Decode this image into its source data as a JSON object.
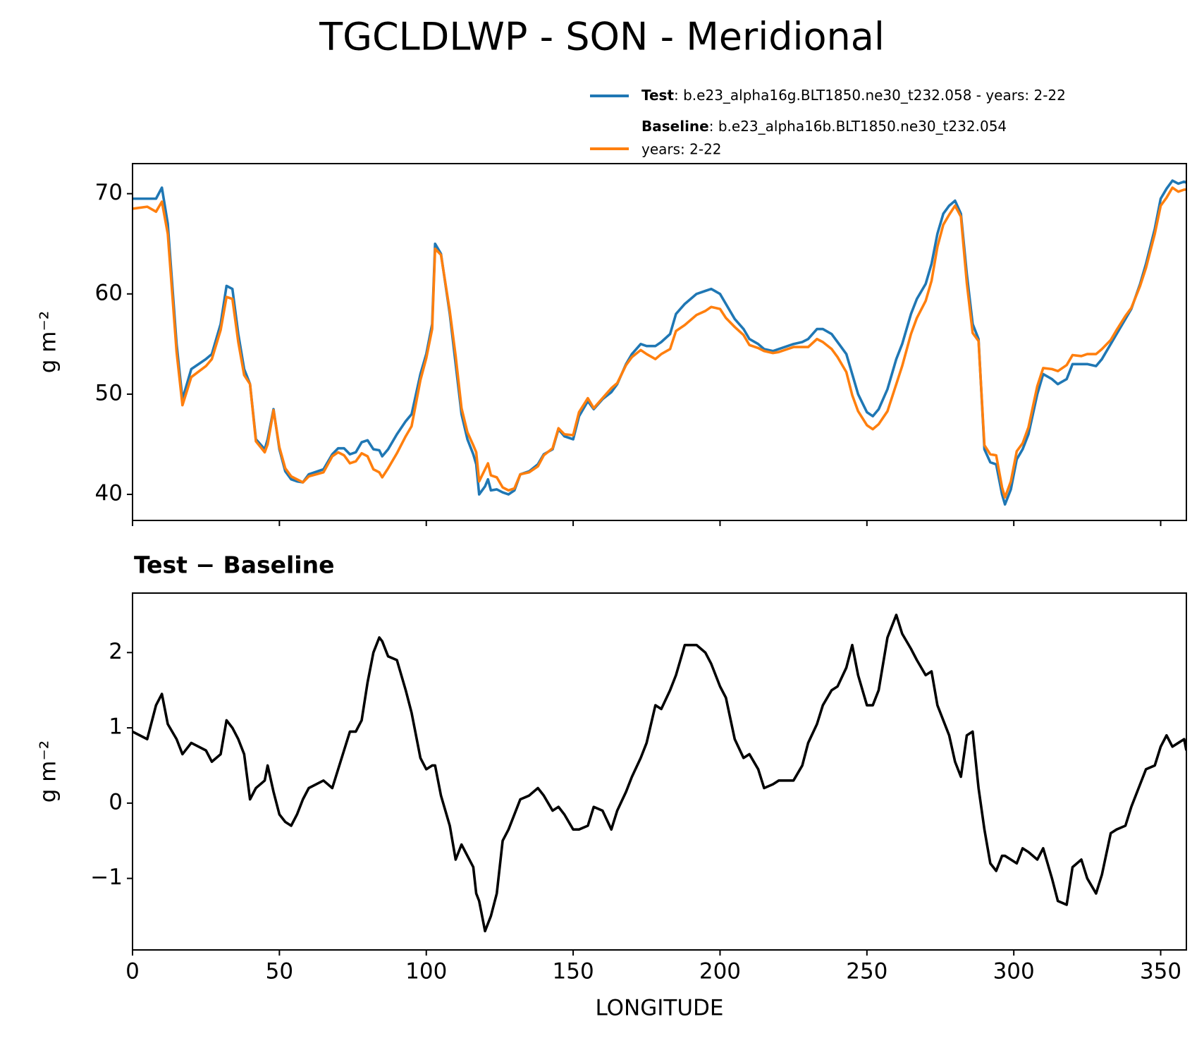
{
  "chart_data": [
    {
      "type": "line",
      "title": "TGCLDLWP - SON - Meridional",
      "ylabel": "g m⁻²",
      "xlim": [
        0,
        358.75
      ],
      "xticks": [
        0,
        50,
        100,
        150,
        200,
        250,
        300,
        350
      ],
      "ylim": [
        37.4,
        73.0
      ],
      "yticks": [
        40,
        50,
        60,
        70
      ],
      "x": [
        0,
        5,
        8,
        10,
        12,
        15,
        17,
        20,
        25,
        27,
        30,
        32,
        34,
        36,
        38,
        40,
        42,
        45,
        46,
        48,
        50,
        52,
        54,
        56,
        58,
        60,
        65,
        68,
        70,
        72,
        74,
        76,
        78,
        80,
        82,
        84,
        85,
        87,
        90,
        93,
        95,
        98,
        100,
        102,
        103,
        105,
        108,
        110,
        112,
        114,
        116,
        117,
        118,
        120,
        121,
        122,
        124,
        126,
        128,
        130,
        132,
        135,
        138,
        140,
        143,
        145,
        147,
        150,
        152,
        155,
        157,
        160,
        163,
        165,
        168,
        170,
        173,
        175,
        178,
        180,
        183,
        185,
        188,
        190,
        192,
        195,
        197,
        200,
        202,
        205,
        208,
        210,
        213,
        215,
        218,
        220,
        223,
        225,
        228,
        230,
        233,
        235,
        238,
        240,
        243,
        245,
        247,
        250,
        252,
        254,
        257,
        260,
        262,
        265,
        267,
        270,
        272,
        274,
        276,
        278,
        280,
        282,
        284,
        286,
        288,
        290,
        292,
        294,
        296,
        297,
        299,
        301,
        303,
        305,
        308,
        310,
        313,
        315,
        318,
        320,
        323,
        325,
        328,
        330,
        333,
        335,
        338,
        340,
        343,
        345,
        348,
        350,
        352,
        354,
        356,
        358,
        358.75
      ],
      "series": [
        {
          "name": "Test",
          "description": [
            ": b.e23_alpha16g.BLT1850.ne30_t232.058 - years: 2-22"
          ],
          "color": "#1f77b4",
          "values": [
            69.5,
            69.5,
            69.5,
            70.6,
            67,
            55,
            49.5,
            52.5,
            53.5,
            54,
            57,
            60.8,
            60.5,
            56,
            52.5,
            51,
            45.5,
            44.5,
            45.5,
            48.5,
            44.5,
            42.3,
            41.5,
            41.3,
            41.2,
            42,
            42.5,
            44,
            44.6,
            44.6,
            44,
            44.2,
            45.2,
            45.4,
            44.5,
            44.4,
            43.8,
            44.5,
            46,
            47.3,
            48,
            52,
            54,
            57,
            65,
            64,
            58,
            53,
            48,
            45.5,
            44,
            43,
            40,
            40.8,
            41.5,
            40.4,
            40.5,
            40.2,
            40,
            40.4,
            42,
            42.3,
            43,
            44,
            44.5,
            46.5,
            45.8,
            45.5,
            47.8,
            49.3,
            48.5,
            49.5,
            50.2,
            51,
            53,
            54,
            55,
            54.8,
            54.8,
            55.2,
            56,
            58,
            59,
            59.5,
            60,
            60.3,
            60.5,
            60,
            59,
            57.5,
            56.5,
            55.5,
            55,
            54.5,
            54.3,
            54.5,
            54.8,
            55,
            55.2,
            55.5,
            56.5,
            56.5,
            56,
            55.2,
            54,
            52,
            50,
            48.2,
            47.8,
            48.5,
            50.5,
            53.5,
            55,
            58,
            59.5,
            61,
            63,
            66,
            68,
            68.8,
            69.3,
            68,
            62,
            57,
            55.5,
            44.5,
            43.2,
            43,
            40,
            39,
            40.5,
            43.5,
            44.5,
            46,
            50,
            52,
            51.5,
            51,
            51.5,
            53,
            53,
            53,
            52.8,
            53.5,
            55,
            56,
            57.5,
            58.5,
            61,
            63,
            66.5,
            69.5,
            70.5,
            71.3,
            71,
            71.2,
            71.1
          ]
        },
        {
          "name": "Baseline",
          "description": [
            ": b.e23_alpha16b.BLT1850.ne30_t232.054",
            "years: 2-22"
          ],
          "color": "#ff7f0e",
          "values": [
            68.5,
            68.7,
            68.2,
            69.2,
            66.0,
            54.2,
            48.9,
            51.7,
            52.8,
            53.5,
            56.4,
            59.7,
            59.5,
            55.2,
            51.9,
            51.0,
            45.3,
            44.2,
            45.0,
            48.4,
            44.7,
            42.6,
            41.8,
            41.5,
            41.2,
            41.8,
            42.2,
            43.8,
            44.2,
            43.9,
            43.1,
            43.3,
            44.1,
            43.8,
            42.5,
            42.2,
            41.7,
            42.6,
            44.1,
            45.8,
            46.8,
            51.4,
            53.6,
            56.5,
            64.5,
            63.9,
            58.3,
            53.8,
            48.6,
            46.2,
            44.9,
            44.2,
            41.3,
            42.5,
            43.1,
            41.9,
            41.7,
            40.7,
            40.4,
            40.6,
            42.0,
            42.2,
            42.8,
            43.9,
            44.6,
            46.6,
            46.0,
            45.9,
            48.2,
            49.6,
            48.6,
            49.6,
            50.6,
            51.1,
            52.9,
            53.7,
            54.4,
            54.0,
            53.5,
            54.0,
            54.5,
            56.3,
            56.9,
            57.4,
            57.9,
            58.3,
            58.7,
            58.5,
            57.6,
            56.7,
            55.9,
            54.9,
            54.6,
            54.3,
            54.1,
            54.2,
            54.5,
            54.7,
            54.7,
            54.7,
            55.5,
            55.2,
            54.5,
            53.7,
            52.2,
            49.9,
            48.3,
            46.9,
            46.5,
            47.0,
            48.3,
            51.0,
            52.8,
            56.0,
            57.6,
            59.3,
            61.3,
            64.7,
            66.9,
            67.9,
            68.8,
            67.7,
            61.1,
            56.1,
            55.3,
            44.9,
            44.0,
            43.9,
            40.7,
            39.7,
            41.3,
            44.3,
            45.1,
            46.7,
            50.8,
            52.6,
            52.5,
            52.3,
            52.9,
            53.9,
            53.8,
            54.0,
            54.0,
            54.5,
            55.4,
            56.4,
            57.8,
            58.6,
            60.8,
            62.6,
            66.0,
            68.8,
            69.6,
            70.6,
            70.2,
            70.4,
            70.4
          ]
        }
      ]
    },
    {
      "type": "line",
      "title": "Test − Baseline",
      "xlabel": "LONGITUDE",
      "ylabel": "g m⁻²",
      "xlim": [
        0,
        358.75
      ],
      "xticks": [
        0,
        50,
        100,
        150,
        200,
        250,
        300,
        350
      ],
      "ylim": [
        -1.95,
        2.79
      ],
      "yticks": [
        {
          "value": -1,
          "label": "−1"
        },
        0,
        1,
        2
      ],
      "x": [
        0,
        5,
        8,
        10,
        12,
        15,
        17,
        20,
        25,
        27,
        30,
        32,
        34,
        36,
        38,
        40,
        42,
        45,
        46,
        48,
        50,
        52,
        54,
        56,
        58,
        60,
        65,
        68,
        70,
        72,
        74,
        76,
        78,
        80,
        82,
        84,
        85,
        87,
        90,
        93,
        95,
        98,
        100,
        102,
        103,
        105,
        108,
        110,
        112,
        114,
        116,
        117,
        118,
        120,
        121,
        122,
        124,
        126,
        128,
        130,
        132,
        135,
        138,
        140,
        143,
        145,
        147,
        150,
        152,
        155,
        157,
        160,
        163,
        165,
        168,
        170,
        173,
        175,
        178,
        180,
        183,
        185,
        188,
        190,
        192,
        195,
        197,
        200,
        202,
        205,
        208,
        210,
        213,
        215,
        218,
        220,
        223,
        225,
        228,
        230,
        233,
        235,
        238,
        240,
        243,
        245,
        247,
        250,
        252,
        254,
        257,
        260,
        262,
        265,
        267,
        270,
        272,
        274,
        276,
        278,
        280,
        282,
        284,
        286,
        288,
        290,
        292,
        294,
        296,
        297,
        299,
        301,
        303,
        305,
        308,
        310,
        313,
        315,
        318,
        320,
        323,
        325,
        328,
        330,
        333,
        335,
        338,
        340,
        343,
        345,
        348,
        350,
        352,
        354,
        356,
        358,
        358.75
      ],
      "color": "#000000",
      "values": [
        0.95,
        0.85,
        1.3,
        1.45,
        1.05,
        0.85,
        0.65,
        0.8,
        0.7,
        0.55,
        0.65,
        1.1,
        1.0,
        0.85,
        0.65,
        0.05,
        0.2,
        0.3,
        0.5,
        0.15,
        -0.15,
        -0.25,
        -0.3,
        -0.15,
        0.05,
        0.2,
        0.3,
        0.2,
        0.45,
        0.7,
        0.95,
        0.95,
        1.1,
        1.6,
        2.0,
        2.2,
        2.15,
        1.95,
        1.9,
        1.5,
        1.2,
        0.6,
        0.45,
        0.5,
        0.5,
        0.1,
        -0.3,
        -0.75,
        -0.55,
        -0.7,
        -0.85,
        -1.2,
        -1.3,
        -1.7,
        -1.6,
        -1.5,
        -1.2,
        -0.5,
        -0.35,
        -0.15,
        0.05,
        0.1,
        0.2,
        0.1,
        -0.1,
        -0.05,
        -0.15,
        -0.35,
        -0.35,
        -0.3,
        -0.05,
        -0.1,
        -0.35,
        -0.1,
        0.15,
        0.35,
        0.6,
        0.8,
        1.3,
        1.25,
        1.5,
        1.7,
        2.1,
        2.1,
        2.1,
        2.0,
        1.85,
        1.55,
        1.4,
        0.85,
        0.6,
        0.65,
        0.45,
        0.2,
        0.25,
        0.3,
        0.3,
        0.3,
        0.5,
        0.8,
        1.05,
        1.3,
        1.5,
        1.55,
        1.8,
        2.1,
        1.7,
        1.3,
        1.3,
        1.5,
        2.2,
        2.5,
        2.25,
        2.05,
        1.9,
        1.7,
        1.75,
        1.3,
        1.1,
        0.9,
        0.55,
        0.35,
        0.9,
        0.95,
        0.2,
        -0.35,
        -0.8,
        -0.9,
        -0.7,
        -0.7,
        -0.75,
        -0.8,
        -0.6,
        -0.65,
        -0.75,
        -0.6,
        -1.0,
        -1.3,
        -1.35,
        -0.85,
        -0.75,
        -1.0,
        -1.2,
        -0.95,
        -0.4,
        -0.35,
        -0.3,
        -0.05,
        0.25,
        0.45,
        0.5,
        0.75,
        0.9,
        0.75,
        0.8,
        0.85,
        0.7
      ]
    }
  ]
}
